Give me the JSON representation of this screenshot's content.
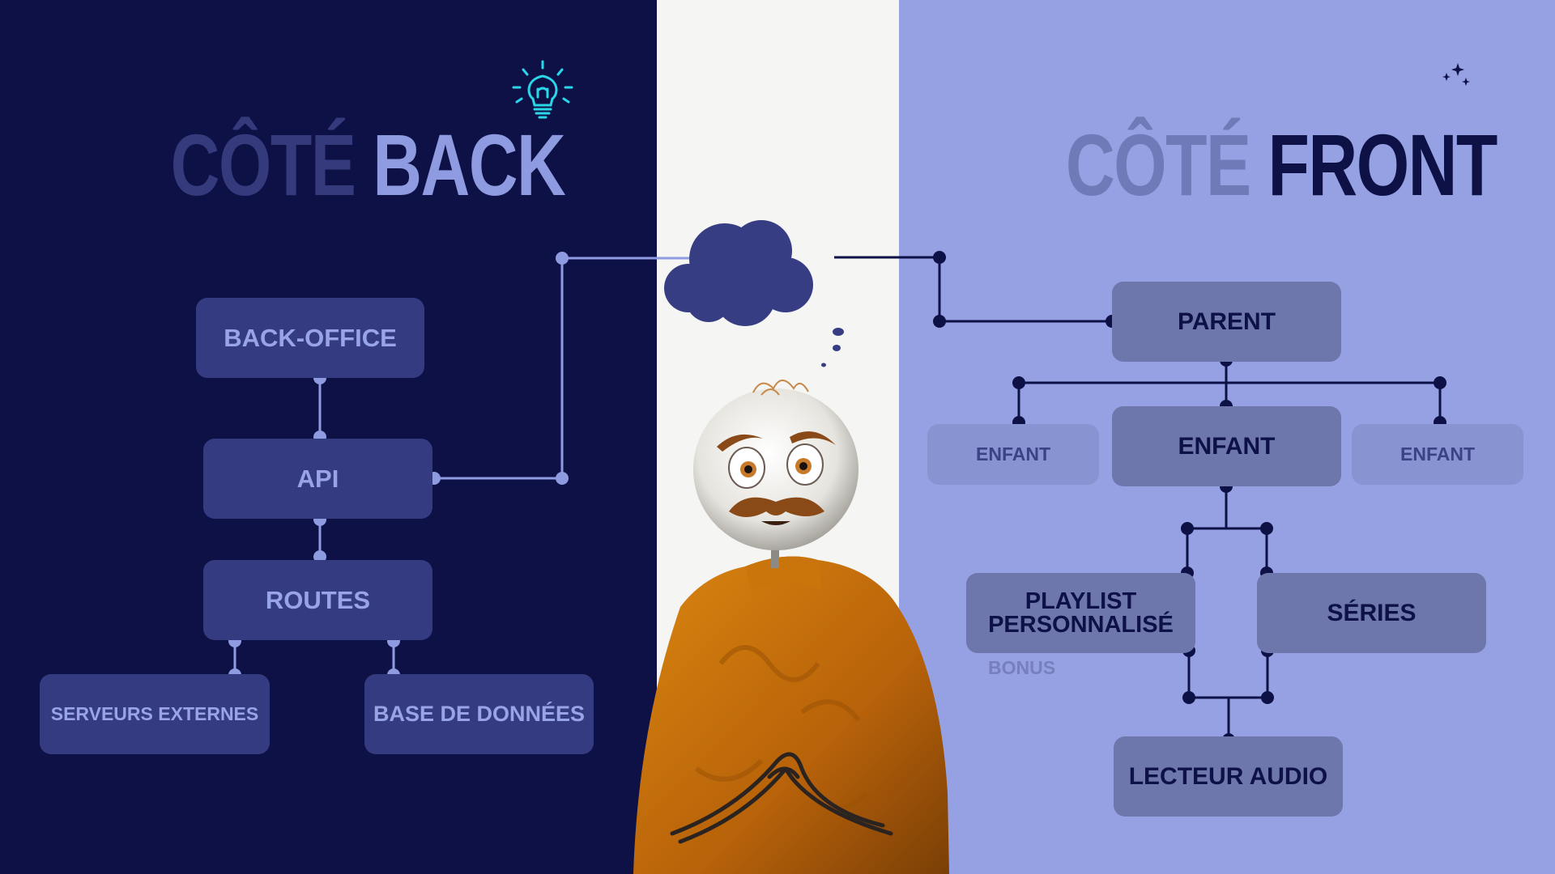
{
  "back": {
    "title_word1": "CÔTÉ",
    "title_word2": "BACK",
    "nodes": {
      "back_office": "BACK-OFFICE",
      "api": "API",
      "routes": "ROUTES",
      "external_servers": "SERVEURS EXTERNES",
      "database": "BASE DE DONNÉES"
    }
  },
  "front": {
    "title_word1": "CÔTÉ",
    "title_word2": "FRONT",
    "nodes": {
      "parent": "PARENT",
      "child_left": "ENFANT",
      "child_center": "ENFANT",
      "child_right": "ENFANT",
      "playlist_line1": "PLAYLIST",
      "playlist_line2": "PERSONNALISÉ",
      "playlist_note": "BONUS",
      "series": "SÉRIES",
      "audio_player": "LECTEUR AUDIO"
    }
  },
  "icons": {
    "back_panel": "lightbulb-icon",
    "front_panel": "crescent-moon-stars-icon"
  },
  "colors": {
    "back_background": "#0d1146",
    "center_background": "#f5f5f3",
    "front_background": "#95a1e3",
    "back_node": "#353b80",
    "front_node": "#6d77ab",
    "accent_cyan": "#2ad6e8"
  }
}
